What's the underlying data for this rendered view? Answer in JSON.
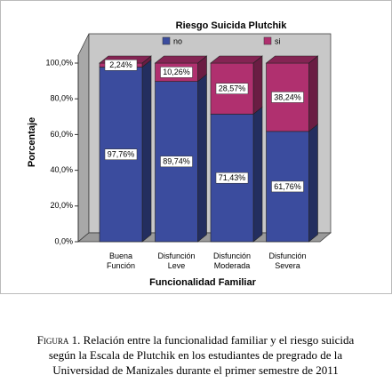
{
  "chart_data": {
    "type": "bar",
    "stacked": true,
    "title": "Riesgo Suicida Plutchik",
    "categories": [
      "Buena Función",
      "Disfunción Leve",
      "Disfunción Moderada",
      "Disfunción Severa"
    ],
    "series": [
      {
        "name": "no",
        "color": "#3b4c9e",
        "values": [
          97.76,
          89.74,
          71.43,
          61.76
        ],
        "value_labels": [
          "97,76%",
          "89,74%",
          "71,43%",
          "61,76%"
        ]
      },
      {
        "name": "si",
        "color": "#b0306f",
        "values": [
          2.24,
          10.26,
          28.57,
          38.24
        ],
        "value_labels": [
          "2,24%",
          "10,26%",
          "28,57%",
          "38,24%"
        ]
      }
    ],
    "ylim": [
      0,
      100
    ],
    "yticks": [
      {
        "value": 0,
        "label": "0,0%"
      },
      {
        "value": 20,
        "label": "20,0%"
      },
      {
        "value": 40,
        "label": "40,0%"
      },
      {
        "value": 60,
        "label": "60,0%"
      },
      {
        "value": 80,
        "label": "80,0%"
      },
      {
        "value": 100,
        "label": "100,0%"
      }
    ],
    "xlabel": "Funcionalidad Familiar",
    "ylabel": "Porcentaje",
    "grid": false
  },
  "caption": {
    "label": "Figura 1.",
    "lines": [
      "Relación entre la funcionalidad familiar y el riesgo suicida",
      "según la Escala de Plutchik en los estudiantes de pregrado de la",
      "Universidad de Manizales durante el primer semestre de 2011"
    ]
  }
}
